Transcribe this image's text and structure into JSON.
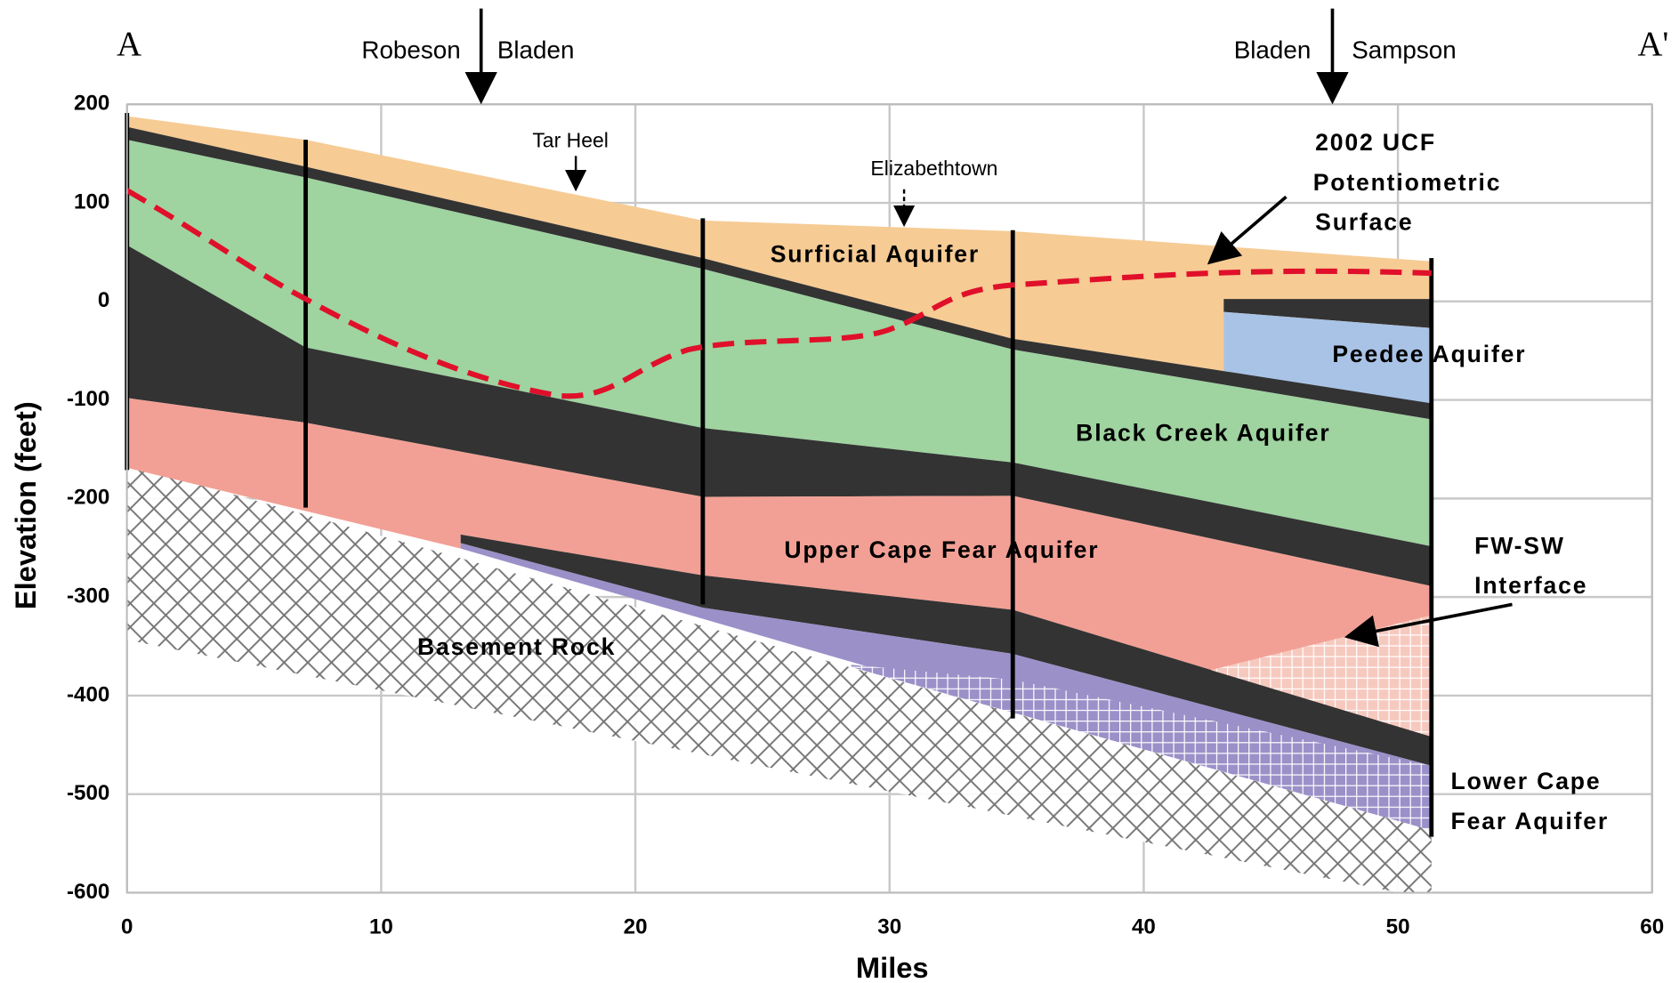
{
  "chart_data": {
    "type": "cross-section",
    "x_label": "Miles",
    "y_label": "Elevation (feet)",
    "xlim": [
      0,
      60
    ],
    "ylim": [
      -600,
      200
    ],
    "xticks": [
      0,
      10,
      20,
      30,
      40,
      50,
      60
    ],
    "yticks": [
      -600,
      -500,
      -400,
      -300,
      -200,
      -100,
      0,
      100,
      200
    ],
    "grid": true,
    "section_ends": [
      "A",
      "A'"
    ],
    "county_lines": [
      [
        "Robeson",
        "Bladen"
      ],
      [
        "Bladen",
        "Sampson"
      ]
    ],
    "towns": [
      "Tar Heel",
      "Elizabethtown"
    ],
    "units": [
      "Surficial Aquifer",
      "Peedee Aquifer",
      "Black Creek Aquifer",
      "Upper Cape Fear Aquifer",
      "Basement Rock"
    ],
    "potentiometric_label": [
      "2002 UCF",
      "Potentiometric",
      "Surface"
    ],
    "interface_label": [
      "FW-SW",
      "Interface"
    ],
    "lower_unit_label": [
      "Lower Cape",
      "Fear Aquifer"
    ]
  }
}
